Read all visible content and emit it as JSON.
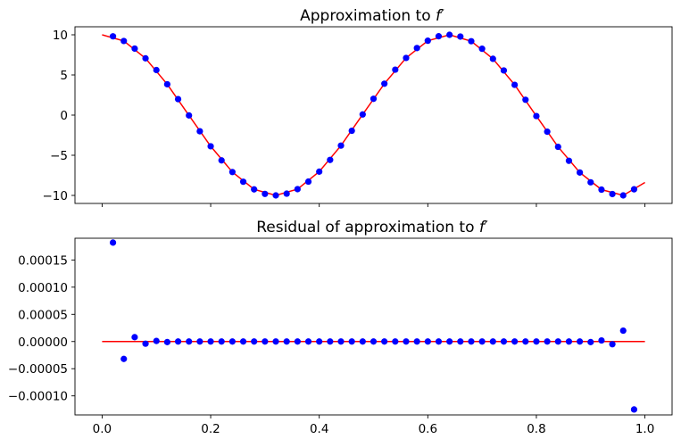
{
  "chart_data": [
    {
      "type": "line",
      "title": "Approximation to ",
      "title_symbol": "f′",
      "xlabel": "",
      "ylabel": "",
      "xlim": [
        -0.05,
        1.05
      ],
      "ylim": [
        -11,
        11
      ],
      "xticks": [
        0.0,
        0.2,
        0.4,
        0.6,
        0.8,
        1.0
      ],
      "xtick_labels_shown": false,
      "yticks": [
        10,
        5,
        0,
        -5,
        -10
      ],
      "ytick_labels": [
        "10",
        "5",
        "0",
        "−5",
        "−10"
      ],
      "grid": false,
      "line_color": "#ff0000",
      "marker_color": "#0000ff",
      "line": {
        "x": [
          0.0,
          0.04,
          0.08,
          0.12,
          0.16,
          0.2,
          0.24,
          0.28,
          0.32,
          0.36,
          0.4,
          0.44,
          0.48,
          0.52,
          0.56,
          0.6,
          0.64,
          0.68,
          0.72,
          0.76,
          0.8,
          0.84,
          0.88,
          0.92,
          0.96,
          1.0
        ],
        "y": [
          10.0,
          9.23,
          7.07,
          3.84,
          -0.04,
          -3.88,
          -7.09,
          -9.25,
          -10.0,
          -9.22,
          -7.04,
          -3.8,
          0.08,
          3.91,
          7.12,
          9.26,
          10.0,
          9.2,
          7.01,
          3.77,
          -0.12,
          -3.95,
          -7.15,
          -9.28,
          -10.0,
          -8.39
        ]
      },
      "points": {
        "x": [
          0.02,
          0.04,
          0.06,
          0.08,
          0.1,
          0.12,
          0.14,
          0.16,
          0.18,
          0.2,
          0.22,
          0.24,
          0.26,
          0.28,
          0.3,
          0.32,
          0.34,
          0.36,
          0.38,
          0.4,
          0.42,
          0.44,
          0.46,
          0.48,
          0.5,
          0.52,
          0.54,
          0.56,
          0.58,
          0.6,
          0.62,
          0.64,
          0.66,
          0.68,
          0.7,
          0.72,
          0.74,
          0.76,
          0.78,
          0.8,
          0.82,
          0.84,
          0.86,
          0.88,
          0.9,
          0.92,
          0.94,
          0.96,
          0.98
        ],
        "y": [
          9.81,
          9.23,
          8.28,
          7.07,
          5.61,
          3.84,
          1.99,
          -0.04,
          -2.01,
          -3.88,
          -5.64,
          -7.09,
          -8.3,
          -9.25,
          -9.81,
          -10.0,
          -9.78,
          -9.22,
          -8.28,
          -7.04,
          -5.58,
          -3.8,
          -1.95,
          0.08,
          2.03,
          3.91,
          5.66,
          7.12,
          8.35,
          9.26,
          9.82,
          10.0,
          9.78,
          9.2,
          8.26,
          7.01,
          5.56,
          3.77,
          1.91,
          -0.12,
          -2.07,
          -3.95,
          -5.69,
          -7.15,
          -8.37,
          -9.28,
          -9.83,
          -10.0,
          -9.24
        ]
      }
    },
    {
      "type": "line",
      "title": "Residual of approximation to ",
      "title_symbol": "f′",
      "xlabel": "",
      "ylabel": "",
      "xlim": [
        -0.05,
        1.05
      ],
      "ylim": [
        -0.000135,
        0.00019
      ],
      "xticks": [
        0.0,
        0.2,
        0.4,
        0.6,
        0.8,
        1.0
      ],
      "xtick_labels": [
        "0.0",
        "0.2",
        "0.4",
        "0.6",
        "0.8",
        "1.0"
      ],
      "yticks": [
        0.00015,
        0.0001,
        5e-05,
        0.0,
        -5e-05,
        -0.0001
      ],
      "ytick_labels": [
        "0.00015",
        "0.00010",
        "0.00005",
        "0.00000",
        "−0.00005",
        "−0.00010"
      ],
      "grid": false,
      "line_color": "#ff0000",
      "marker_color": "#0000ff",
      "line": {
        "x": [
          0.0,
          1.0
        ],
        "y": [
          0.0,
          0.0
        ]
      },
      "points": {
        "x": [
          0.02,
          0.04,
          0.06,
          0.08,
          0.1,
          0.12,
          0.14,
          0.16,
          0.18,
          0.2,
          0.22,
          0.24,
          0.26,
          0.28,
          0.3,
          0.32,
          0.34,
          0.36,
          0.38,
          0.4,
          0.42,
          0.44,
          0.46,
          0.48,
          0.5,
          0.52,
          0.54,
          0.56,
          0.58,
          0.6,
          0.62,
          0.64,
          0.66,
          0.68,
          0.7,
          0.72,
          0.74,
          0.76,
          0.78,
          0.8,
          0.82,
          0.84,
          0.86,
          0.88,
          0.9,
          0.92,
          0.94,
          0.96,
          0.98
        ],
        "y": [
          0.000182,
          -3.2e-05,
          8e-06,
          -4e-06,
          1e-06,
          -1e-06,
          0.0,
          0.0,
          0.0,
          0.0,
          0.0,
          0.0,
          0.0,
          0.0,
          0.0,
          0.0,
          0.0,
          0.0,
          0.0,
          0.0,
          0.0,
          0.0,
          0.0,
          0.0,
          0.0,
          0.0,
          0.0,
          0.0,
          0.0,
          0.0,
          0.0,
          0.0,
          0.0,
          0.0,
          0.0,
          0.0,
          0.0,
          0.0,
          0.0,
          0.0,
          0.0,
          0.0,
          0.0,
          0.0,
          -1e-06,
          2e-06,
          -5e-06,
          2e-05,
          -0.000125
        ]
      }
    }
  ]
}
